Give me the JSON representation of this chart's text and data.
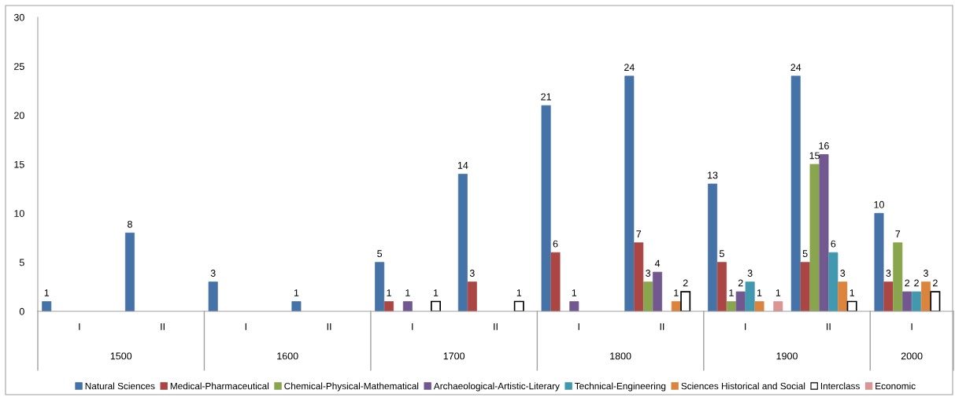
{
  "chart_data": {
    "type": "bar",
    "categories": [
      "I",
      "II",
      "I",
      "II",
      "I",
      "II",
      "I",
      "II",
      "I",
      "II",
      "I"
    ],
    "annotations": [
      "1500",
      "1600",
      "1700",
      "1800",
      "1900",
      "2000"
    ],
    "series": [
      {
        "name": "Natural Sciences",
        "color": "#4572a7",
        "values": [
          1,
          8,
          3,
          1,
          5,
          14,
          21,
          24,
          13,
          24,
          10
        ]
      },
      {
        "name": "Medical-Pharmaceutical",
        "color": "#aa4643",
        "values": [
          null,
          null,
          null,
          null,
          1,
          3,
          6,
          7,
          5,
          5,
          3
        ]
      },
      {
        "name": "Chemical-Physical-Mathematical",
        "color": "#89a54e",
        "values": [
          null,
          null,
          null,
          null,
          null,
          null,
          null,
          3,
          1,
          15,
          7
        ]
      },
      {
        "name": "Archaeological-Artistic-Literary",
        "color": "#71588f",
        "values": [
          null,
          null,
          null,
          null,
          1,
          null,
          1,
          4,
          2,
          16,
          2
        ]
      },
      {
        "name": "Technical-Engineering",
        "color": "#4198af",
        "values": [
          null,
          null,
          null,
          null,
          null,
          null,
          null,
          null,
          3,
          6,
          2
        ]
      },
      {
        "name": "Sciences Historical and Social",
        "color": "#db843d",
        "values": [
          null,
          null,
          null,
          null,
          null,
          null,
          null,
          1,
          1,
          3,
          3
        ]
      },
      {
        "name": "Interclass",
        "color": "#ffffff",
        "values": [
          null,
          null,
          null,
          null,
          1,
          1,
          null,
          2,
          null,
          1,
          2
        ]
      },
      {
        "name": "Economic",
        "color": "#d99694",
        "values": [
          null,
          null,
          null,
          null,
          null,
          null,
          null,
          null,
          1,
          null,
          null
        ]
      }
    ],
    "ylim": [
      0,
      30
    ],
    "yticks": [
      0,
      5,
      10,
      15,
      20,
      25,
      30
    ],
    "data_labels": true,
    "grid": false,
    "legend": "bottom"
  }
}
